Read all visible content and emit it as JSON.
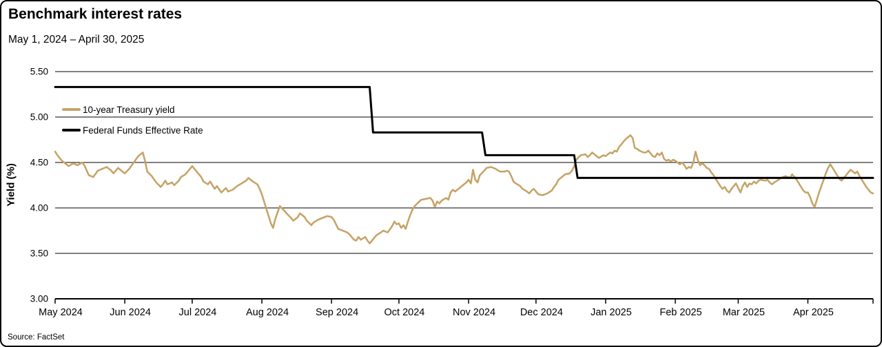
{
  "header": {
    "title": "Benchmark interest rates",
    "subtitle": "May 1, 2024 – April 30, 2025"
  },
  "footer": {
    "source": "Source: FactSet"
  },
  "colors": {
    "treasury": "#C6A468",
    "fed_funds": "#000000",
    "grid": "#000000"
  },
  "chart_data": {
    "type": "line",
    "title": "Benchmark interest rates",
    "subtitle": "May 1, 2024 – April 30, 2025",
    "xlabel": "",
    "ylabel": "Yield (%)",
    "ylim": [
      3.0,
      5.5
    ],
    "ytick_values": [
      5.5,
      5.0,
      4.5,
      4.0,
      3.5,
      3.0
    ],
    "ytick_labels": [
      "5.50",
      "5.00",
      "4.50",
      "4.00",
      "3.50",
      "3.00"
    ],
    "x_domain_days": [
      0,
      364
    ],
    "month_tick_days": [
      0,
      31,
      61,
      92,
      123,
      153,
      184,
      214,
      245,
      276,
      304,
      335
    ],
    "xtick_labels": [
      "May 2024",
      "Jun 2024",
      "Jul 2024",
      "Aug 2024",
      "Sep 2024",
      "Oct 2024",
      "Nov 2024",
      "Dec 2024",
      "Jan 2025",
      "Feb 2025",
      "Mar 2025",
      "Apr 2025"
    ],
    "grid": true,
    "legend_position": "upper-left-inside",
    "legend": [
      {
        "label": "10-year Treasury yield",
        "color": "#C6A468"
      },
      {
        "label": "Federal Funds Effective Rate",
        "color": "#000000"
      }
    ],
    "series": [
      {
        "name": "10-year Treasury yield",
        "color": "#C6A468",
        "width": 2.6,
        "points": [
          [
            0,
            4.62
          ],
          [
            1,
            4.58
          ],
          [
            3,
            4.52
          ],
          [
            5,
            4.48
          ],
          [
            6,
            4.46
          ],
          [
            8,
            4.49
          ],
          [
            10,
            4.47
          ],
          [
            12,
            4.5
          ],
          [
            13,
            4.47
          ],
          [
            15,
            4.36
          ],
          [
            17,
            4.34
          ],
          [
            19,
            4.41
          ],
          [
            21,
            4.43
          ],
          [
            23,
            4.45
          ],
          [
            25,
            4.41
          ],
          [
            26,
            4.38
          ],
          [
            28,
            4.44
          ],
          [
            30,
            4.4
          ],
          [
            31,
            4.38
          ],
          [
            33,
            4.43
          ],
          [
            35,
            4.5
          ],
          [
            37,
            4.57
          ],
          [
            39,
            4.61
          ],
          [
            40,
            4.52
          ],
          [
            41,
            4.4
          ],
          [
            43,
            4.35
          ],
          [
            45,
            4.28
          ],
          [
            47,
            4.23
          ],
          [
            48,
            4.26
          ],
          [
            49,
            4.3
          ],
          [
            50,
            4.26
          ],
          [
            52,
            4.28
          ],
          [
            53,
            4.25
          ],
          [
            55,
            4.3
          ],
          [
            56,
            4.34
          ],
          [
            58,
            4.37
          ],
          [
            60,
            4.43
          ],
          [
            61,
            4.46
          ],
          [
            63,
            4.4
          ],
          [
            65,
            4.34
          ],
          [
            66,
            4.29
          ],
          [
            68,
            4.26
          ],
          [
            69,
            4.29
          ],
          [
            71,
            4.21
          ],
          [
            72,
            4.24
          ],
          [
            74,
            4.17
          ],
          [
            76,
            4.22
          ],
          [
            77,
            4.18
          ],
          [
            79,
            4.2
          ],
          [
            81,
            4.24
          ],
          [
            83,
            4.27
          ],
          [
            85,
            4.3
          ],
          [
            86,
            4.33
          ],
          [
            88,
            4.29
          ],
          [
            90,
            4.26
          ],
          [
            91,
            4.21
          ],
          [
            92,
            4.15
          ],
          [
            94,
            3.99
          ],
          [
            96,
            3.83
          ],
          [
            97,
            3.78
          ],
          [
            98,
            3.88
          ],
          [
            99,
            3.95
          ],
          [
            100,
            4.02
          ],
          [
            102,
            3.97
          ],
          [
            103,
            3.94
          ],
          [
            105,
            3.89
          ],
          [
            106,
            3.86
          ],
          [
            108,
            3.9
          ],
          [
            109,
            3.94
          ],
          [
            111,
            3.9
          ],
          [
            112,
            3.86
          ],
          [
            114,
            3.81
          ],
          [
            115,
            3.84
          ],
          [
            117,
            3.87
          ],
          [
            119,
            3.89
          ],
          [
            121,
            3.91
          ],
          [
            123,
            3.9
          ],
          [
            124,
            3.87
          ],
          [
            126,
            3.77
          ],
          [
            128,
            3.75
          ],
          [
            130,
            3.73
          ],
          [
            131,
            3.71
          ],
          [
            133,
            3.65
          ],
          [
            134,
            3.64
          ],
          [
            135,
            3.68
          ],
          [
            136,
            3.65
          ],
          [
            138,
            3.68
          ],
          [
            139,
            3.64
          ],
          [
            140,
            3.61
          ],
          [
            141,
            3.64
          ],
          [
            143,
            3.7
          ],
          [
            145,
            3.73
          ],
          [
            146,
            3.75
          ],
          [
            148,
            3.73
          ],
          [
            150,
            3.8
          ],
          [
            151,
            3.85
          ],
          [
            152,
            3.82
          ],
          [
            153,
            3.83
          ],
          [
            154,
            3.78
          ],
          [
            155,
            3.81
          ],
          [
            156,
            3.77
          ],
          [
            157,
            3.85
          ],
          [
            158,
            3.92
          ],
          [
            159,
            3.98
          ],
          [
            160,
            4.02
          ],
          [
            162,
            4.07
          ],
          [
            163,
            4.09
          ],
          [
            165,
            4.1
          ],
          [
            167,
            4.11
          ],
          [
            168,
            4.08
          ],
          [
            169,
            4.01
          ],
          [
            170,
            4.07
          ],
          [
            171,
            4.05
          ],
          [
            172,
            4.08
          ],
          [
            174,
            4.11
          ],
          [
            175,
            4.09
          ],
          [
            176,
            4.17
          ],
          [
            177,
            4.2
          ],
          [
            178,
            4.18
          ],
          [
            180,
            4.22
          ],
          [
            181,
            4.24
          ],
          [
            183,
            4.28
          ],
          [
            184,
            4.31
          ],
          [
            185,
            4.27
          ],
          [
            186,
            4.42
          ],
          [
            187,
            4.31
          ],
          [
            188,
            4.28
          ],
          [
            189,
            4.36
          ],
          [
            191,
            4.41
          ],
          [
            192,
            4.44
          ],
          [
            194,
            4.45
          ],
          [
            196,
            4.43
          ],
          [
            198,
            4.4
          ],
          [
            200,
            4.4
          ],
          [
            201,
            4.41
          ],
          [
            202,
            4.4
          ],
          [
            203,
            4.35
          ],
          [
            204,
            4.29
          ],
          [
            205,
            4.27
          ],
          [
            207,
            4.24
          ],
          [
            208,
            4.21
          ],
          [
            210,
            4.18
          ],
          [
            211,
            4.16
          ],
          [
            212,
            4.19
          ],
          [
            213,
            4.21
          ],
          [
            214,
            4.18
          ],
          [
            215,
            4.15
          ],
          [
            217,
            4.14
          ],
          [
            219,
            4.16
          ],
          [
            221,
            4.19
          ],
          [
            222,
            4.23
          ],
          [
            223,
            4.26
          ],
          [
            224,
            4.31
          ],
          [
            226,
            4.35
          ],
          [
            227,
            4.37
          ],
          [
            229,
            4.38
          ],
          [
            230,
            4.41
          ],
          [
            231,
            4.46
          ],
          [
            232,
            4.53
          ],
          [
            233,
            4.56
          ],
          [
            234,
            4.58
          ],
          [
            236,
            4.59
          ],
          [
            237,
            4.56
          ],
          [
            238,
            4.58
          ],
          [
            239,
            4.61
          ],
          [
            240,
            4.59
          ],
          [
            241,
            4.57
          ],
          [
            242,
            4.55
          ],
          [
            244,
            4.58
          ],
          [
            245,
            4.57
          ],
          [
            246,
            4.59
          ],
          [
            247,
            4.61
          ],
          [
            248,
            4.6
          ],
          [
            249,
            4.63
          ],
          [
            250,
            4.62
          ],
          [
            251,
            4.67
          ],
          [
            252,
            4.7
          ],
          [
            253,
            4.73
          ],
          [
            254,
            4.76
          ],
          [
            255,
            4.78
          ],
          [
            256,
            4.8
          ],
          [
            257,
            4.77
          ],
          [
            258,
            4.66
          ],
          [
            259,
            4.65
          ],
          [
            260,
            4.63
          ],
          [
            261,
            4.62
          ],
          [
            262,
            4.61
          ],
          [
            263,
            4.61
          ],
          [
            264,
            4.63
          ],
          [
            265,
            4.6
          ],
          [
            266,
            4.57
          ],
          [
            267,
            4.56
          ],
          [
            268,
            4.6
          ],
          [
            269,
            4.58
          ],
          [
            270,
            4.61
          ],
          [
            271,
            4.54
          ],
          [
            272,
            4.52
          ],
          [
            273,
            4.53
          ],
          [
            274,
            4.51
          ],
          [
            275,
            4.53
          ],
          [
            276,
            4.52
          ],
          [
            277,
            4.5
          ],
          [
            278,
            4.48
          ],
          [
            279,
            4.5
          ],
          [
            280,
            4.47
          ],
          [
            281,
            4.43
          ],
          [
            282,
            4.45
          ],
          [
            283,
            4.44
          ],
          [
            284,
            4.5
          ],
          [
            285,
            4.62
          ],
          [
            286,
            4.53
          ],
          [
            287,
            4.47
          ],
          [
            288,
            4.49
          ],
          [
            289,
            4.47
          ],
          [
            290,
            4.44
          ],
          [
            291,
            4.43
          ],
          [
            292,
            4.39
          ],
          [
            293,
            4.36
          ],
          [
            294,
            4.32
          ],
          [
            295,
            4.28
          ],
          [
            296,
            4.24
          ],
          [
            297,
            4.21
          ],
          [
            298,
            4.23
          ],
          [
            299,
            4.19
          ],
          [
            300,
            4.17
          ],
          [
            301,
            4.21
          ],
          [
            302,
            4.24
          ],
          [
            303,
            4.27
          ],
          [
            304,
            4.22
          ],
          [
            305,
            4.17
          ],
          [
            306,
            4.24
          ],
          [
            307,
            4.28
          ],
          [
            308,
            4.23
          ],
          [
            309,
            4.27
          ],
          [
            310,
            4.26
          ],
          [
            311,
            4.29
          ],
          [
            312,
            4.27
          ],
          [
            313,
            4.3
          ],
          [
            314,
            4.31
          ],
          [
            316,
            4.3
          ],
          [
            317,
            4.31
          ],
          [
            318,
            4.28
          ],
          [
            319,
            4.26
          ],
          [
            320,
            4.28
          ],
          [
            322,
            4.31
          ],
          [
            323,
            4.33
          ],
          [
            325,
            4.35
          ],
          [
            326,
            4.34
          ],
          [
            327,
            4.33
          ],
          [
            328,
            4.37
          ],
          [
            329,
            4.34
          ],
          [
            330,
            4.31
          ],
          [
            331,
            4.27
          ],
          [
            332,
            4.23
          ],
          [
            333,
            4.19
          ],
          [
            334,
            4.17
          ],
          [
            335,
            4.17
          ],
          [
            336,
            4.12
          ],
          [
            337,
            4.05
          ],
          [
            338,
            4.01
          ],
          [
            339,
            4.09
          ],
          [
            340,
            4.17
          ],
          [
            341,
            4.24
          ],
          [
            342,
            4.31
          ],
          [
            343,
            4.38
          ],
          [
            344,
            4.44
          ],
          [
            345,
            4.48
          ],
          [
            346,
            4.44
          ],
          [
            347,
            4.4
          ],
          [
            348,
            4.36
          ],
          [
            349,
            4.32
          ],
          [
            350,
            4.3
          ],
          [
            351,
            4.33
          ],
          [
            352,
            4.36
          ],
          [
            353,
            4.39
          ],
          [
            354,
            4.42
          ],
          [
            355,
            4.4
          ],
          [
            356,
            4.38
          ],
          [
            357,
            4.4
          ],
          [
            358,
            4.35
          ],
          [
            359,
            4.31
          ],
          [
            360,
            4.27
          ],
          [
            361,
            4.23
          ],
          [
            362,
            4.2
          ],
          [
            363,
            4.17
          ],
          [
            364,
            4.16
          ]
        ]
      },
      {
        "name": "Federal Funds Effective Rate",
        "color": "#000000",
        "width": 3,
        "points": [
          [
            0,
            5.33
          ],
          [
            140,
            5.33
          ],
          [
            141.5,
            4.83
          ],
          [
            190,
            4.83
          ],
          [
            191.5,
            4.58
          ],
          [
            231,
            4.58
          ],
          [
            232.5,
            4.33
          ],
          [
            364,
            4.33
          ]
        ]
      }
    ]
  }
}
